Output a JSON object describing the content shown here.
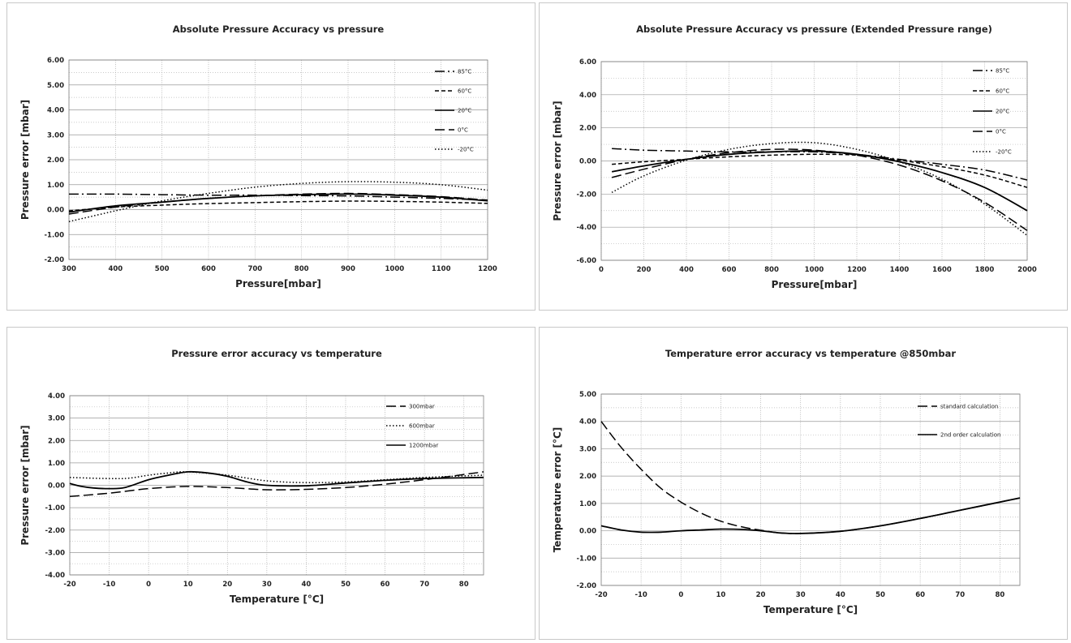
{
  "charts": [
    {
      "type": "line",
      "title": "Absolute Pressure Accuracy vs pressure",
      "xlabel": "Pressure[mbar]",
      "ylabel": "Pressure error [mbar]",
      "xlim": [
        300,
        1200
      ],
      "ylim": [
        -2,
        6
      ],
      "xticks": [
        300,
        400,
        500,
        600,
        700,
        800,
        900,
        1000,
        1100,
        1200
      ],
      "yticks": [
        -2,
        -1,
        0,
        1,
        2,
        3,
        4,
        5,
        6
      ],
      "x_tick_labels": [
        "300",
        "400",
        "500",
        "600",
        "700",
        "800",
        "900",
        "1000",
        "1100",
        "1200"
      ],
      "y_tick_labels": [
        "-2.00",
        "-1.00",
        "0.00",
        "1.00",
        "2.00",
        "3.00",
        "4.00",
        "5.00",
        "6.00"
      ],
      "grid": true,
      "legend_position": "top-right",
      "series": [
        {
          "name": "85°C",
          "dash": "longdot",
          "x": [
            300,
            400,
            500,
            600,
            700,
            800,
            900,
            1000,
            1100,
            1200
          ],
          "y": [
            0.62,
            0.62,
            0.6,
            0.58,
            0.58,
            0.56,
            0.55,
            0.5,
            0.45,
            0.38
          ]
        },
        {
          "name": "60°C",
          "dash": "short",
          "x": [
            300,
            400,
            500,
            600,
            700,
            800,
            900,
            1000,
            1100,
            1200
          ],
          "y": [
            -0.05,
            0.1,
            0.18,
            0.24,
            0.28,
            0.32,
            0.34,
            0.33,
            0.3,
            0.25
          ]
        },
        {
          "name": "20°C",
          "dash": "solid",
          "x": [
            300,
            400,
            500,
            600,
            700,
            800,
            900,
            1000,
            1100,
            1200
          ],
          "y": [
            -0.1,
            0.15,
            0.3,
            0.45,
            0.55,
            0.6,
            0.62,
            0.58,
            0.5,
            0.35
          ]
        },
        {
          "name": "0°C",
          "dash": "long",
          "x": [
            300,
            400,
            500,
            600,
            700,
            800,
            900,
            1000,
            1100,
            1200
          ],
          "y": [
            -0.18,
            0.1,
            0.3,
            0.45,
            0.55,
            0.62,
            0.65,
            0.6,
            0.52,
            0.38
          ]
        },
        {
          "name": "-20°C",
          "dash": "dot",
          "x": [
            300,
            400,
            500,
            600,
            700,
            800,
            900,
            1000,
            1100,
            1200
          ],
          "y": [
            -0.48,
            -0.05,
            0.35,
            0.65,
            0.9,
            1.05,
            1.12,
            1.1,
            1.0,
            0.78
          ]
        }
      ]
    },
    {
      "type": "line",
      "title": "Absolute Pressure Accuracy vs pressure (Extended Pressure range)",
      "xlabel": "Pressure[mbar]",
      "ylabel": "Pressure error [mbar]",
      "xlim": [
        0,
        2000
      ],
      "ylim": [
        -6,
        6
      ],
      "xticks": [
        0,
        200,
        400,
        600,
        800,
        1000,
        1200,
        1400,
        1600,
        1800,
        2000
      ],
      "yticks": [
        -6,
        -4,
        -2,
        0,
        2,
        4,
        6
      ],
      "x_tick_labels": [
        "0",
        "200",
        "400",
        "600",
        "800",
        "1000",
        "1200",
        "1400",
        "1600",
        "1800",
        "2000"
      ],
      "y_tick_labels": [
        "-6.00",
        "-4.00",
        "-2.00",
        "0.00",
        "2.00",
        "4.00",
        "6.00"
      ],
      "grid": true,
      "legend_position": "top-right",
      "series": [
        {
          "name": "85°C",
          "dash": "longdot",
          "x": [
            50,
            200,
            400,
            600,
            800,
            1000,
            1200,
            1400,
            1600,
            1800,
            2000
          ],
          "y": [
            0.75,
            0.65,
            0.6,
            0.55,
            0.55,
            0.55,
            0.4,
            0.1,
            -0.2,
            -0.55,
            -1.15
          ]
        },
        {
          "name": "60°C",
          "dash": "short",
          "x": [
            50,
            200,
            400,
            600,
            800,
            1000,
            1200,
            1400,
            1600,
            1800,
            2000
          ],
          "y": [
            -0.2,
            -0.05,
            0.1,
            0.25,
            0.35,
            0.4,
            0.35,
            0.05,
            -0.35,
            -0.85,
            -1.6
          ]
        },
        {
          "name": "20°C",
          "dash": "solid",
          "x": [
            50,
            200,
            400,
            600,
            800,
            1000,
            1200,
            1400,
            1600,
            1800,
            2000
          ],
          "y": [
            -0.65,
            -0.3,
            0.1,
            0.4,
            0.55,
            0.6,
            0.4,
            -0.05,
            -0.7,
            -1.6,
            -3.0
          ]
        },
        {
          "name": "0°C",
          "dash": "long",
          "x": [
            50,
            200,
            400,
            600,
            800,
            1000,
            1200,
            1400,
            1600,
            1800,
            2000
          ],
          "y": [
            -1.0,
            -0.5,
            0.1,
            0.5,
            0.7,
            0.65,
            0.35,
            -0.25,
            -1.2,
            -2.5,
            -4.2
          ]
        },
        {
          "name": "-20°C",
          "dash": "dot",
          "x": [
            50,
            200,
            400,
            600,
            800,
            1000,
            1200,
            1400,
            1600,
            1800,
            2000
          ],
          "y": [
            -1.9,
            -0.9,
            0.05,
            0.7,
            1.05,
            1.1,
            0.7,
            -0.05,
            -1.1,
            -2.6,
            -4.5
          ]
        }
      ]
    },
    {
      "type": "line",
      "title": "Pressure error accuracy vs temperature",
      "xlabel": "Temperature [°C]",
      "ylabel": "Pressure error [mbar]",
      "xlim": [
        -20,
        85
      ],
      "ylim": [
        -4,
        4
      ],
      "xticks": [
        -20,
        -10,
        0,
        10,
        20,
        30,
        40,
        50,
        60,
        70,
        80
      ],
      "yticks": [
        -4,
        -3,
        -2,
        -1,
        0,
        1,
        2,
        3,
        4
      ],
      "x_tick_labels": [
        "-20",
        "-10",
        "0",
        "10",
        "20",
        "30",
        "40",
        "50",
        "60",
        "70",
        "80"
      ],
      "y_tick_labels": [
        "-4.00",
        "-3.00",
        "-2.00",
        "-1.00",
        "0.00",
        "1.00",
        "2.00",
        "3.00",
        "4.00"
      ],
      "grid": true,
      "legend_position": "top-right",
      "series": [
        {
          "name": "300mbar",
          "dash": "long",
          "x": [
            -20,
            -10,
            0,
            10,
            20,
            30,
            40,
            50,
            60,
            70,
            85
          ],
          "y": [
            -0.5,
            -0.35,
            -0.15,
            -0.05,
            -0.1,
            -0.2,
            -0.18,
            -0.1,
            0.05,
            0.25,
            0.6
          ]
        },
        {
          "name": "600mbar",
          "dash": "dot",
          "x": [
            -20,
            -10,
            -5,
            0,
            5,
            10,
            20,
            30,
            40,
            50,
            60,
            70,
            85
          ],
          "y": [
            0.35,
            0.3,
            0.32,
            0.45,
            0.55,
            0.6,
            0.45,
            0.2,
            0.12,
            0.15,
            0.25,
            0.35,
            0.45
          ]
        },
        {
          "name": "1200mbar",
          "dash": "solid",
          "x": [
            -20,
            -17,
            -14,
            -10,
            -6,
            0,
            5,
            10,
            15,
            20,
            25,
            30,
            40,
            50,
            60,
            70,
            85
          ],
          "y": [
            0.08,
            -0.05,
            -0.12,
            -0.15,
            -0.1,
            0.25,
            0.45,
            0.6,
            0.55,
            0.4,
            0.15,
            0.0,
            -0.02,
            0.1,
            0.22,
            0.3,
            0.35
          ]
        }
      ]
    },
    {
      "type": "line",
      "title": "Temperature error accuracy vs temperature @850mbar",
      "xlabel": "Temperature [°C]",
      "ylabel": "Temperature error [°C]",
      "xlim": [
        -20,
        85
      ],
      "ylim": [
        -2,
        5
      ],
      "xticks": [
        -20,
        -10,
        0,
        10,
        20,
        30,
        40,
        50,
        60,
        70,
        80
      ],
      "yticks": [
        -2,
        -1,
        0,
        1,
        2,
        3,
        4,
        5
      ],
      "x_tick_labels": [
        "-20",
        "-10",
        "0",
        "10",
        "20",
        "30",
        "40",
        "50",
        "60",
        "70",
        "80"
      ],
      "y_tick_labels": [
        "-2.00",
        "-1.00",
        "0.00",
        "1.00",
        "2.00",
        "3.00",
        "4.00",
        "5.00"
      ],
      "grid": true,
      "legend_position": "top-right",
      "series": [
        {
          "name": "standard calculation",
          "dash": "long",
          "x": [
            -20,
            -15,
            -10,
            -5,
            0,
            5,
            10,
            15,
            20,
            25,
            30,
            40,
            50,
            60,
            70,
            85
          ],
          "y": [
            4.0,
            3.05,
            2.25,
            1.55,
            1.05,
            0.65,
            0.35,
            0.15,
            0.02,
            -0.08,
            -0.1,
            -0.02,
            0.18,
            0.45,
            0.75,
            1.2
          ]
        },
        {
          "name": "2nd order calculation",
          "dash": "solid",
          "x": [
            -20,
            -15,
            -10,
            -5,
            0,
            5,
            10,
            15,
            20,
            25,
            30,
            40,
            50,
            60,
            70,
            85
          ],
          "y": [
            0.18,
            0.03,
            -0.05,
            -0.05,
            0.0,
            0.03,
            0.06,
            0.05,
            0.0,
            -0.08,
            -0.1,
            -0.02,
            0.18,
            0.45,
            0.75,
            1.2
          ]
        }
      ]
    }
  ]
}
